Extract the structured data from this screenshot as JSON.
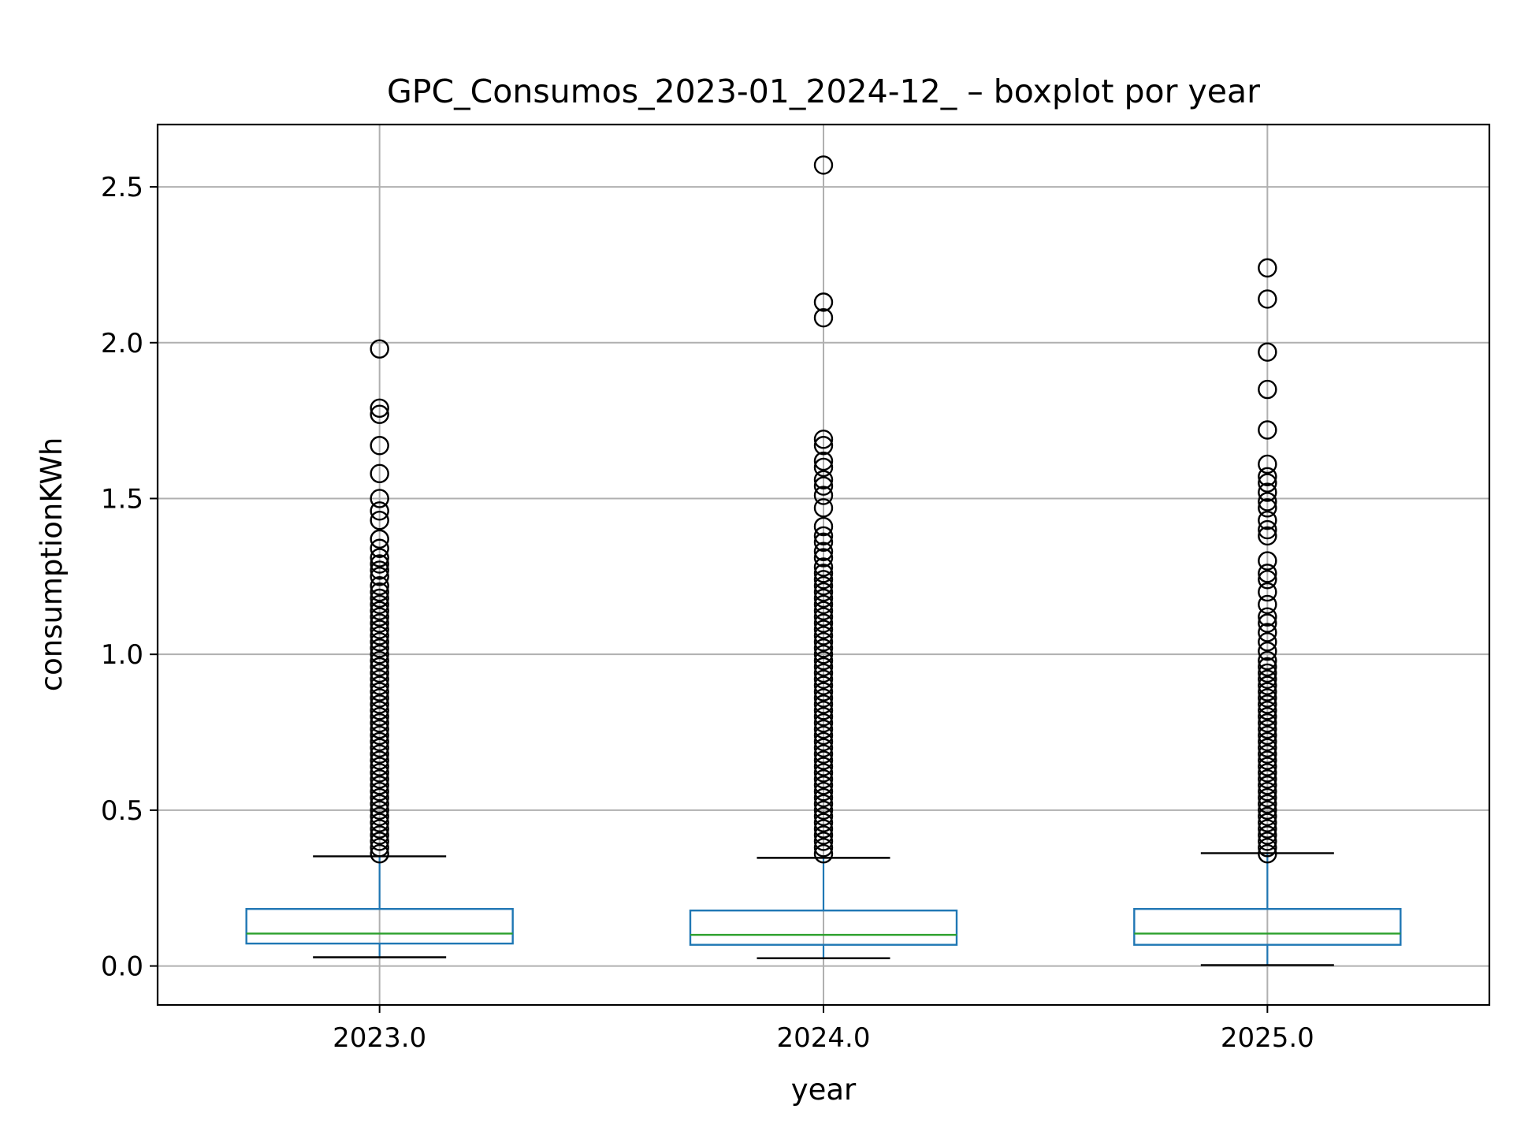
{
  "chart_data": {
    "type": "boxplot",
    "title": "GPC_Consumos_2023-01_2024-12_ – boxplot por year",
    "xlabel": "year",
    "ylabel": "consumptionKWh",
    "ylim": [
      -0.125,
      2.7
    ],
    "grid": true,
    "colors": {
      "box": "#1f77b4",
      "median": "#2ca02c",
      "whisker_cap": "#000000",
      "flier": "#000000",
      "grid": "#b0b0b0"
    },
    "y_ticks": [
      "0.0",
      "0.5",
      "1.0",
      "1.5",
      "2.0",
      "2.5"
    ],
    "y_tick_values": [
      0.0,
      0.5,
      1.0,
      1.5,
      2.0,
      2.5
    ],
    "categories": [
      "2023.0",
      "2024.0",
      "2025.0"
    ],
    "boxes": [
      {
        "category": "2023.0",
        "whisker_low": 0.028,
        "q1": 0.072,
        "median": 0.104,
        "q3": 0.183,
        "whisker_high": 0.352,
        "outliers": [
          1.98,
          1.79,
          1.77,
          1.67,
          1.58,
          1.5,
          1.46,
          1.43,
          1.37,
          1.34,
          1.31,
          1.29,
          1.27,
          1.25,
          1.22,
          1.2,
          1.18,
          1.16,
          1.14,
          1.12,
          1.1,
          1.08,
          1.06,
          1.04,
          1.02,
          1.0,
          0.98,
          0.96,
          0.94,
          0.92,
          0.9,
          0.88,
          0.86,
          0.84,
          0.82,
          0.8,
          0.78,
          0.76,
          0.74,
          0.72,
          0.7,
          0.68,
          0.66,
          0.64,
          0.62,
          0.6,
          0.58,
          0.56,
          0.54,
          0.52,
          0.5,
          0.48,
          0.46,
          0.44,
          0.42,
          0.4,
          0.38,
          0.36
        ]
      },
      {
        "category": "2024.0",
        "whisker_low": 0.025,
        "q1": 0.068,
        "median": 0.1,
        "q3": 0.178,
        "whisker_high": 0.347,
        "outliers": [
          2.57,
          2.13,
          2.08,
          1.69,
          1.67,
          1.62,
          1.6,
          1.56,
          1.54,
          1.51,
          1.47,
          1.41,
          1.38,
          1.36,
          1.33,
          1.31,
          1.28,
          1.26,
          1.24,
          1.22,
          1.2,
          1.18,
          1.16,
          1.14,
          1.12,
          1.1,
          1.08,
          1.06,
          1.04,
          1.02,
          1.0,
          0.98,
          0.96,
          0.94,
          0.92,
          0.9,
          0.88,
          0.86,
          0.84,
          0.82,
          0.8,
          0.78,
          0.76,
          0.74,
          0.72,
          0.7,
          0.68,
          0.66,
          0.64,
          0.62,
          0.6,
          0.58,
          0.56,
          0.54,
          0.52,
          0.5,
          0.48,
          0.46,
          0.44,
          0.42,
          0.4,
          0.38,
          0.36
        ]
      },
      {
        "category": "2025.0",
        "whisker_low": 0.003,
        "q1": 0.068,
        "median": 0.104,
        "q3": 0.183,
        "whisker_high": 0.362,
        "outliers": [
          2.24,
          2.14,
          1.97,
          1.85,
          1.72,
          1.61,
          1.57,
          1.55,
          1.52,
          1.49,
          1.47,
          1.43,
          1.4,
          1.38,
          1.3,
          1.26,
          1.24,
          1.2,
          1.16,
          1.12,
          1.1,
          1.07,
          1.04,
          1.01,
          0.98,
          0.96,
          0.94,
          0.92,
          0.9,
          0.88,
          0.86,
          0.84,
          0.82,
          0.8,
          0.78,
          0.76,
          0.74,
          0.72,
          0.7,
          0.68,
          0.66,
          0.64,
          0.62,
          0.6,
          0.58,
          0.56,
          0.54,
          0.52,
          0.5,
          0.48,
          0.46,
          0.44,
          0.42,
          0.4,
          0.38,
          0.36
        ]
      }
    ]
  }
}
